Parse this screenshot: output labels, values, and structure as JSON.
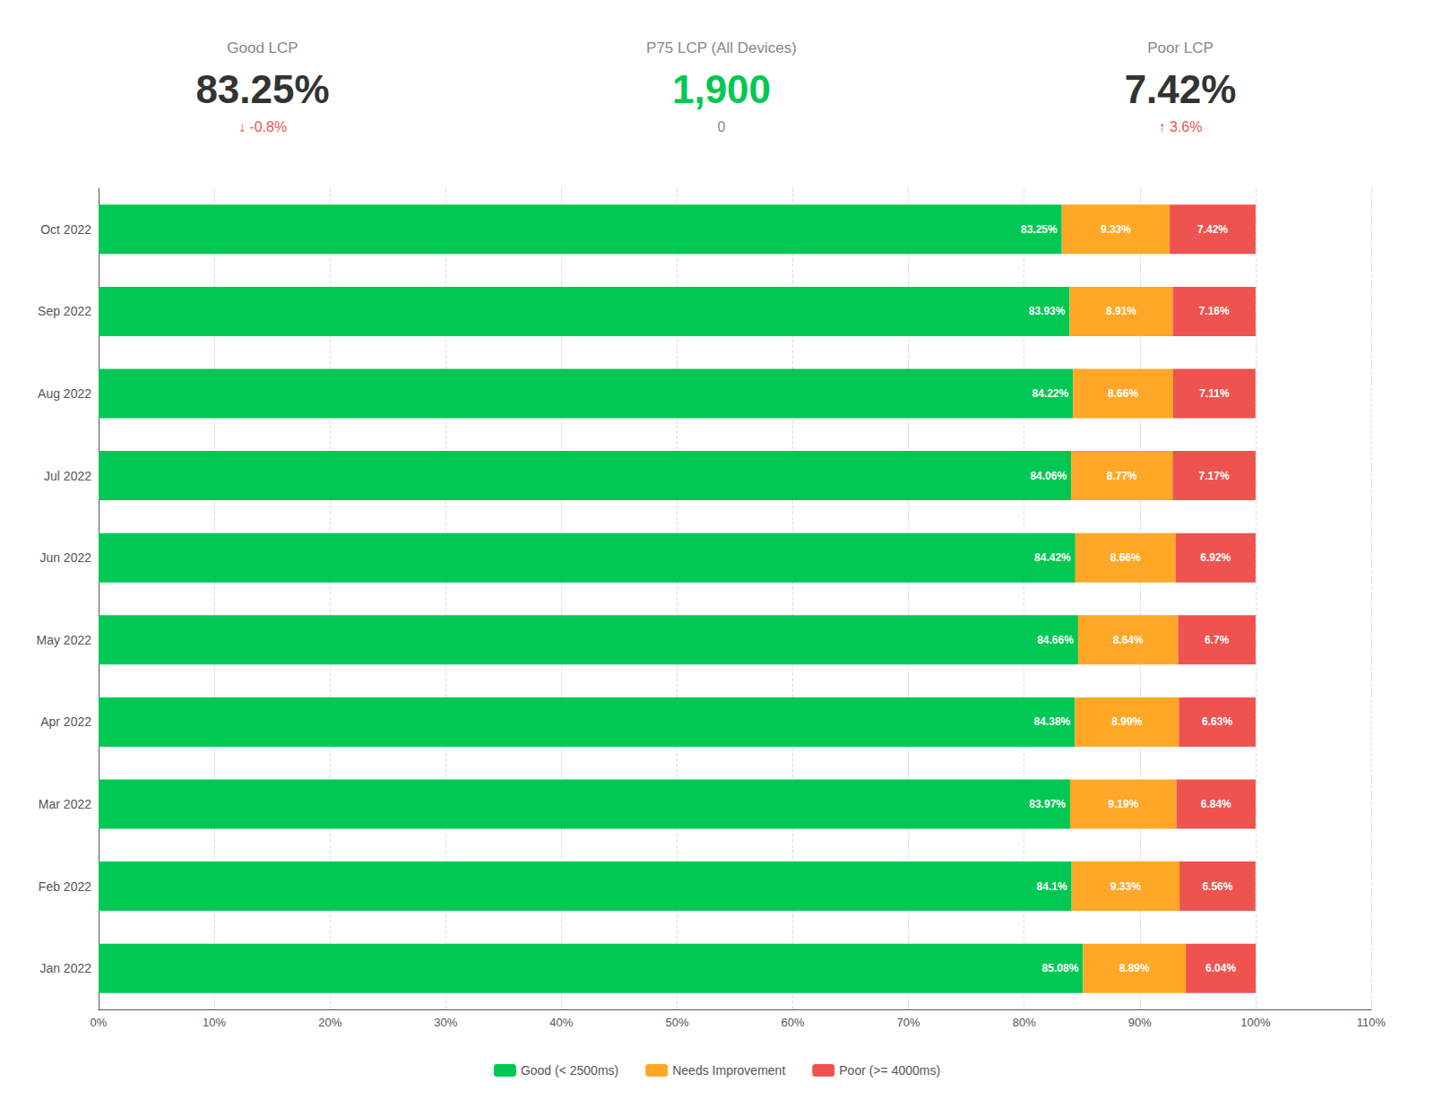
{
  "chart_data": {
    "type": "bar",
    "orientation": "horizontal",
    "stacked": true,
    "data_labels": true,
    "grid": true,
    "legend": "bottom",
    "categories": [
      "Jan 2022",
      "Feb 2022",
      "Mar 2022",
      "Apr 2022",
      "May 2022",
      "Jun 2022",
      "Jul 2022",
      "Aug 2022",
      "Sep 2022",
      "Oct 2022"
    ],
    "series": [
      {
        "name": "Good (< 2500ms)",
        "color": "#00C853",
        "values": [
          85.08,
          84.1,
          83.97,
          84.38,
          84.66,
          84.42,
          84.06,
          84.22,
          83.93,
          83.25
        ],
        "value_labels": [
          "85.08%",
          "84.1%",
          "83.97%",
          "84.38%",
          "84.66%",
          "84.42%",
          "84.06%",
          "84.22%",
          "83.93%",
          "83.25%"
        ]
      },
      {
        "name": "Needs Improvement",
        "color": "#FFA726",
        "values": [
          8.89,
          9.33,
          9.19,
          8.99,
          8.64,
          8.66,
          8.77,
          8.66,
          8.91,
          9.33
        ],
        "value_labels": [
          "8.89%",
          "9.33%",
          "9.19%",
          "8.99%",
          "8.64%",
          "8.66%",
          "8.77%",
          "8.66%",
          "8.91%",
          "9.33%"
        ]
      },
      {
        "name": "Poor (>= 4000ms)",
        "color": "#EF5350",
        "values": [
          6.04,
          6.56,
          6.84,
          6.63,
          6.7,
          6.92,
          7.17,
          7.11,
          7.16,
          7.42
        ],
        "value_labels": [
          "6.04%",
          "6.56%",
          "6.84%",
          "6.63%",
          "6.7%",
          "6.92%",
          "7.17%",
          "7.11%",
          "7.16%",
          "7.42%"
        ]
      }
    ],
    "xlim": [
      0,
      110
    ],
    "xticks": [
      {
        "value": 0,
        "label": "0%"
      },
      {
        "value": 10,
        "label": "10%"
      },
      {
        "value": 20,
        "label": "20%"
      },
      {
        "value": 30,
        "label": "30%"
      },
      {
        "value": 40,
        "label": "40%"
      },
      {
        "value": 50,
        "label": "50%"
      },
      {
        "value": 60,
        "label": "60%"
      },
      {
        "value": 70,
        "label": "70%"
      },
      {
        "value": 80,
        "label": "80%"
      },
      {
        "value": 90,
        "label": "90%"
      },
      {
        "value": 100,
        "label": "100%"
      },
      {
        "value": 110,
        "label": "110%"
      }
    ],
    "annotations": [
      {
        "text": "Good LCP"
      },
      {
        "text": "83.25%"
      },
      {
        "text": "↓ -0.8%",
        "color": "#EF5350"
      },
      {
        "text": "P75 LCP (All Devices)"
      },
      {
        "text": "1,900",
        "color": "#00C853"
      },
      {
        "text": "0"
      },
      {
        "text": "Poor LCP"
      },
      {
        "text": "7.42%"
      },
      {
        "text": "↑ 3.6%",
        "color": "#EF5350"
      }
    ]
  }
}
